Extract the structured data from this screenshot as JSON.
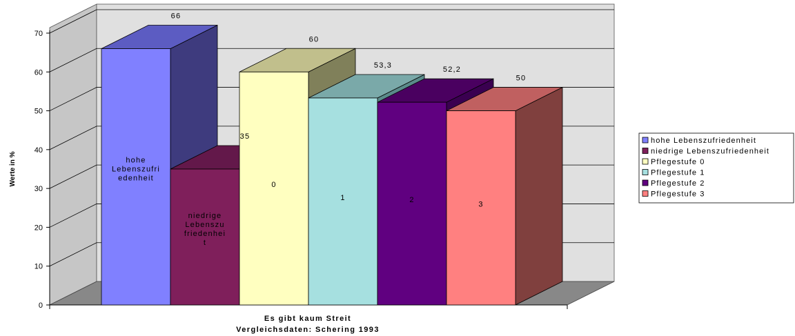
{
  "chart_data": {
    "type": "bar",
    "ylabel": "Werte in %",
    "xlabel": "Es gibt kaum Streit",
    "xlabel2": "Vergleichsdaten: Schering 1993",
    "ylim": [
      0,
      70
    ],
    "yticks": [
      0,
      10,
      20,
      30,
      40,
      50,
      60,
      70
    ],
    "grid": true,
    "legend_position": "right",
    "series": [
      {
        "name": "hohe Lebenszufriedenheit",
        "value": 66,
        "value_label": "66",
        "inside_label": [
          "hohe",
          "Lebenszufri",
          "edenheit"
        ],
        "color": "#8080ff",
        "top_color": "#5c5cc2",
        "side_color": "#3e3b7e"
      },
      {
        "name": "niedrige Lebenszufriedenheit",
        "value": 35,
        "value_label": "35",
        "inside_label": [
          "niedrige",
          "Lebenszu",
          "friedenhei",
          "t"
        ],
        "color": "#7f1f5b",
        "top_color": "#63184a",
        "side_color": "#5a1040"
      },
      {
        "name": "Pflegestufe 0",
        "value": 60,
        "value_label": "60",
        "inside_label": [
          "0"
        ],
        "color": "#ffffc0",
        "top_color": "#c1bf8c",
        "side_color": "#80805a"
      },
      {
        "name": "Pflegestufe 1",
        "value": 53.3,
        "value_label": "53,3",
        "inside_label": [
          "1"
        ],
        "color": "#a6e0e0",
        "top_color": "#7aa9a9",
        "side_color": "#5a8a8a"
      },
      {
        "name": "Pflegestufe 2",
        "value": 52.2,
        "value_label": "52,2",
        "inside_label": [
          "2"
        ],
        "color": "#600080",
        "top_color": "#4a0060",
        "side_color": "#3a0050"
      },
      {
        "name": "Pflegestufe 3",
        "value": 50,
        "value_label": "50",
        "inside_label": [
          "3"
        ],
        "color": "#ff8080",
        "top_color": "#c06060",
        "side_color": "#80403e"
      }
    ]
  }
}
